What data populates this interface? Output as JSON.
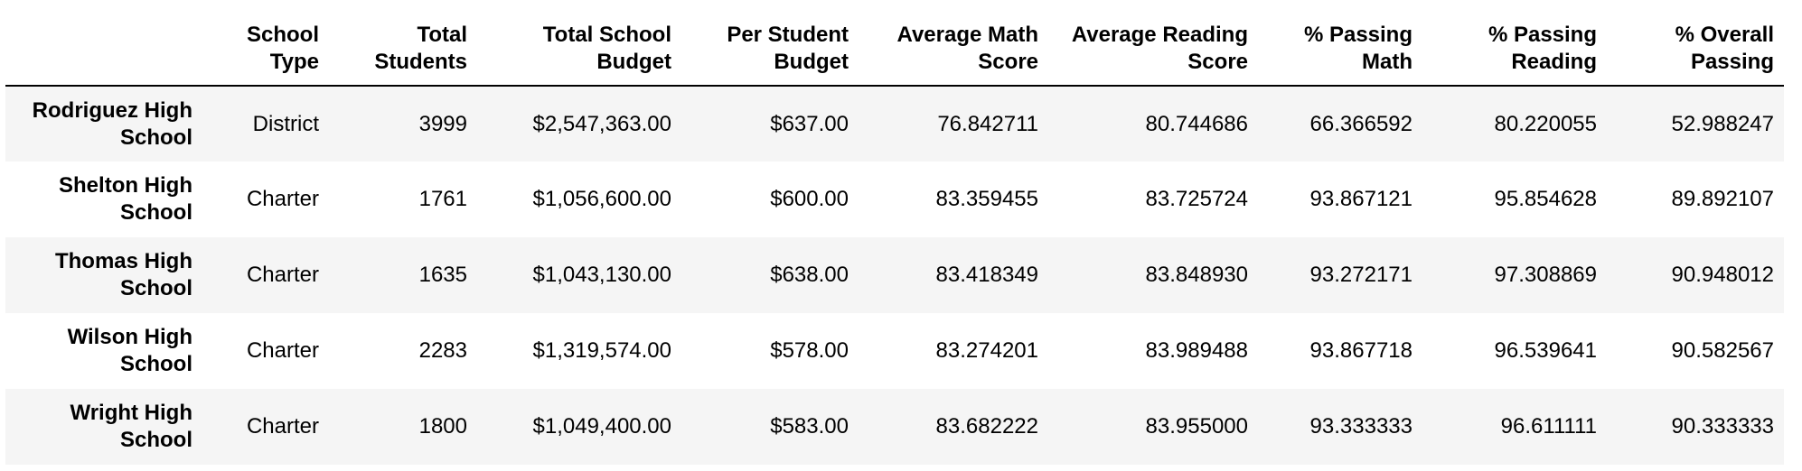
{
  "table": {
    "columns": [
      "",
      "School Type",
      "Total Students",
      "Total School Budget",
      "Per Student Budget",
      "Average Math Score",
      "Average Reading Score",
      "% Passing Math",
      "% Passing Reading",
      "% Overall Passing"
    ],
    "rows": [
      {
        "school": "Rodriguez High School",
        "type": "District",
        "students": "3999",
        "budget": "$2,547,363.00",
        "per_student": "$637.00",
        "avg_math": "76.842711",
        "avg_reading": "80.744686",
        "pass_math": "66.366592",
        "pass_reading": "80.220055",
        "overall": "52.988247"
      },
      {
        "school": "Shelton High School",
        "type": "Charter",
        "students": "1761",
        "budget": "$1,056,600.00",
        "per_student": "$600.00",
        "avg_math": "83.359455",
        "avg_reading": "83.725724",
        "pass_math": "93.867121",
        "pass_reading": "95.854628",
        "overall": "89.892107"
      },
      {
        "school": "Thomas High School",
        "type": "Charter",
        "students": "1635",
        "budget": "$1,043,130.00",
        "per_student": "$638.00",
        "avg_math": "83.418349",
        "avg_reading": "83.848930",
        "pass_math": "93.272171",
        "pass_reading": "97.308869",
        "overall": "90.948012"
      },
      {
        "school": "Wilson High School",
        "type": "Charter",
        "students": "2283",
        "budget": "$1,319,574.00",
        "per_student": "$578.00",
        "avg_math": "83.274201",
        "avg_reading": "83.989488",
        "pass_math": "93.867718",
        "pass_reading": "96.539641",
        "overall": "90.582567"
      },
      {
        "school": "Wright High School",
        "type": "Charter",
        "students": "1800",
        "budget": "$1,049,400.00",
        "per_student": "$583.00",
        "avg_math": "83.682222",
        "avg_reading": "83.955000",
        "pass_math": "93.333333",
        "pass_reading": "96.611111",
        "overall": "90.333333"
      }
    ]
  }
}
